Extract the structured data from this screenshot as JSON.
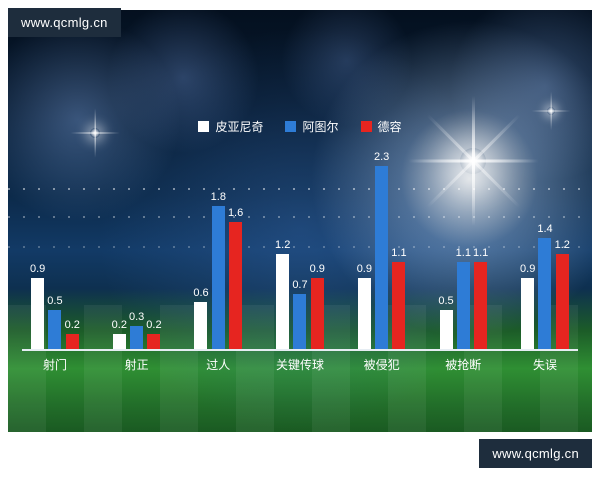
{
  "banners": {
    "top": "www.qcmlg.cn",
    "bottom": "www.qcmlg.cn"
  },
  "chart_data": {
    "type": "bar",
    "categories": [
      "射门",
      "射正",
      "过人",
      "关键传球",
      "被侵犯",
      "被抢断",
      "失误"
    ],
    "series": [
      {
        "name": "皮亚尼奇",
        "color": "#ffffff",
        "values": [
          0.9,
          0.2,
          0.6,
          1.2,
          0.9,
          0.5,
          0.9
        ]
      },
      {
        "name": "阿图尔",
        "color": "#2e7cd6",
        "values": [
          0.5,
          0.3,
          1.8,
          0.7,
          2.3,
          1.1,
          1.4
        ]
      },
      {
        "name": "德容",
        "color": "#e62520",
        "values": [
          0.2,
          0.2,
          1.6,
          0.9,
          1.1,
          1.1,
          1.2
        ]
      }
    ],
    "title": "",
    "xlabel": "",
    "ylabel": "",
    "ylim": [
      0,
      2.4
    ],
    "legend_position": "top",
    "grid": false
  }
}
